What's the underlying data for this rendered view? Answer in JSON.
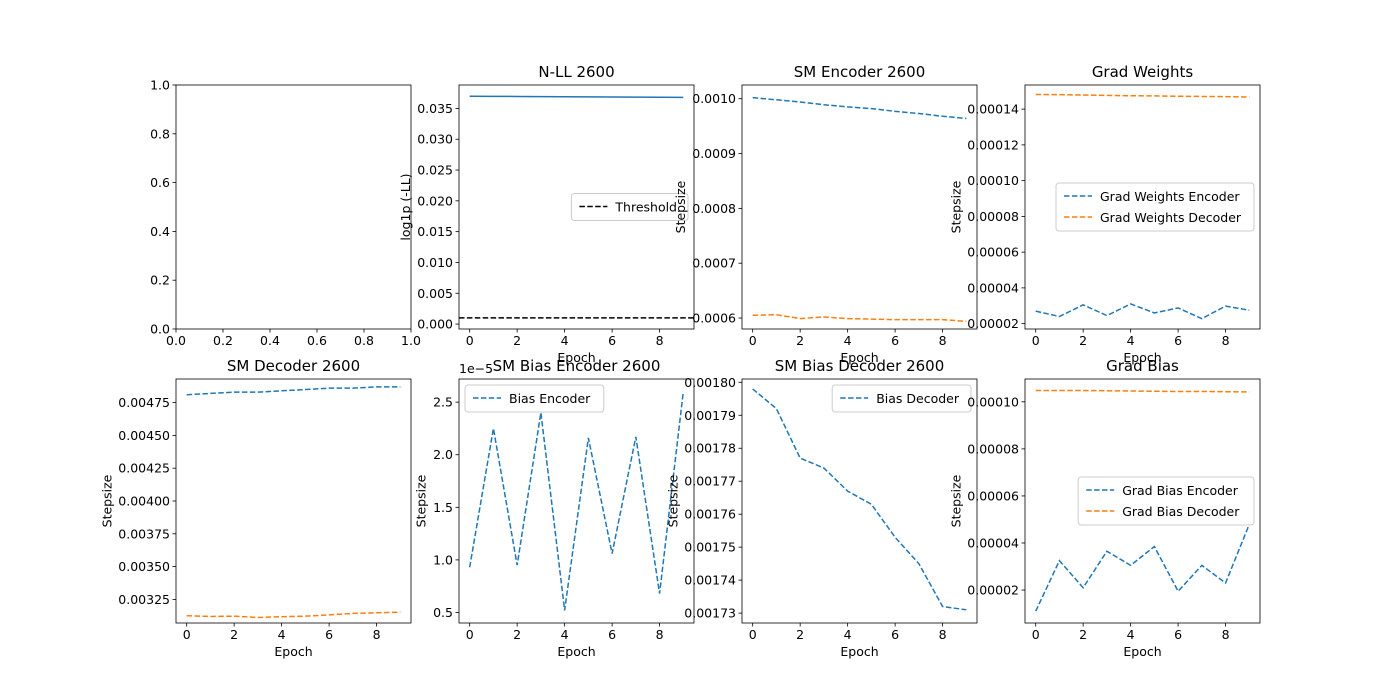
{
  "figure": {
    "layout": "2x4 grid of subplots"
  },
  "chart_data": [
    {
      "type": "line",
      "title": "",
      "xlabel": "",
      "ylabel": "",
      "xlim": [
        0,
        1
      ],
      "ylim": [
        0,
        1
      ],
      "xticks": [
        0.0,
        0.2,
        0.4,
        0.6,
        0.8,
        1.0
      ],
      "xtick_labels": [
        "0.0",
        "0.2",
        "0.4",
        "0.6",
        "0.8",
        "1.0"
      ],
      "yticks": [
        0.0,
        0.2,
        0.4,
        0.6,
        0.8,
        1.0
      ],
      "ytick_labels": [
        "0.0",
        "0.2",
        "0.4",
        "0.6",
        "0.8",
        "1.0"
      ],
      "series": [],
      "legend": null
    },
    {
      "type": "line",
      "title": "N-LL 2600",
      "xlabel": "Epoch",
      "ylabel": "log1p (-LL)",
      "xlim": [
        -0.45,
        9.45
      ],
      "ylim": [
        -0.0008,
        0.0388
      ],
      "xticks": [
        0,
        2,
        4,
        6,
        8
      ],
      "xtick_labels": [
        "0",
        "2",
        "4",
        "6",
        "8"
      ],
      "yticks": [
        0.0,
        0.005,
        0.01,
        0.015,
        0.02,
        0.025,
        0.03,
        0.035
      ],
      "ytick_labels": [
        "0.000",
        "0.005",
        "0.010",
        "0.015",
        "0.020",
        "0.025",
        "0.030",
        "0.035"
      ],
      "series": [
        {
          "color": "#1f77b4",
          "dash": "solid",
          "x": [
            0,
            1,
            2,
            3,
            4,
            5,
            6,
            7,
            8,
            9
          ],
          "y": [
            0.03698,
            0.03696,
            0.03694,
            0.03692,
            0.0369,
            0.03688,
            0.03686,
            0.03684,
            0.03682,
            0.0368
          ]
        },
        {
          "name": "Threshold",
          "color": "#000000",
          "dash": "dashed",
          "x": [
            -0.45,
            9.45
          ],
          "y": [
            0.001,
            0.001
          ]
        }
      ],
      "legend": {
        "position": "center-right",
        "entries": [
          "Threshold"
        ]
      }
    },
    {
      "type": "line",
      "title": "SM Encoder 2600",
      "xlabel": "Epoch",
      "ylabel": "Stepsize",
      "xlim": [
        -0.45,
        9.45
      ],
      "ylim": [
        0.00058,
        0.001025
      ],
      "xticks": [
        0,
        2,
        4,
        6,
        8
      ],
      "xtick_labels": [
        "0",
        "2",
        "4",
        "6",
        "8"
      ],
      "yticks": [
        0.0006,
        0.0007,
        0.0008,
        0.0009,
        0.001
      ],
      "ytick_labels": [
        "0.0006",
        "0.0007",
        "0.0008",
        "0.0009",
        "0.0010"
      ],
      "series": [
        {
          "color": "#1f77b4",
          "dash": "dashed",
          "x": [
            0,
            1,
            2,
            3,
            4,
            5,
            6,
            7,
            8,
            9
          ],
          "y": [
            0.001002,
            0.000998,
            0.000994,
            0.000989,
            0.000985,
            0.000982,
            0.000977,
            0.000973,
            0.000968,
            0.000964
          ]
        },
        {
          "color": "#ff7f0e",
          "dash": "dashed",
          "x": [
            0,
            1,
            2,
            3,
            4,
            5,
            6,
            7,
            8,
            9
          ],
          "y": [
            0.000605,
            0.000606,
            0.000599,
            0.000602,
            0.000599,
            0.000598,
            0.000597,
            0.000597,
            0.000597,
            0.000594
          ]
        }
      ],
      "legend": null
    },
    {
      "type": "line",
      "title": "Grad Weights",
      "xlabel": "Epoch",
      "ylabel": "Stepsize",
      "xlim": [
        -0.45,
        9.45
      ],
      "ylim": [
        1.7e-05,
        0.0001535
      ],
      "xticks": [
        0,
        2,
        4,
        6,
        8
      ],
      "xtick_labels": [
        "0",
        "2",
        "4",
        "6",
        "8"
      ],
      "yticks": [
        2e-05,
        4e-05,
        6e-05,
        8e-05,
        0.0001,
        0.00012,
        0.00014
      ],
      "ytick_labels": [
        "0.00002",
        "0.00004",
        "0.00006",
        "0.00008",
        "0.00010",
        "0.00012",
        "0.00014"
      ],
      "series": [
        {
          "name": "Grad Weights Encoder",
          "color": "#1f77b4",
          "dash": "dashed",
          "x": [
            0,
            1,
            2,
            3,
            4,
            5,
            6,
            7,
            8,
            9
          ],
          "y": [
            2.7e-05,
            2.4e-05,
            3.05e-05,
            2.45e-05,
            3.1e-05,
            2.6e-05,
            2.88e-05,
            2.28e-05,
            2.98e-05,
            2.75e-05
          ]
        },
        {
          "name": "Grad Weights Decoder",
          "color": "#ff7f0e",
          "dash": "dashed",
          "x": [
            0,
            1,
            2,
            3,
            4,
            5,
            6,
            7,
            8,
            9
          ],
          "y": [
            0.0001482,
            0.0001481,
            0.0001479,
            0.0001477,
            0.0001475,
            0.0001474,
            0.0001472,
            0.0001471,
            0.000147,
            0.0001468
          ]
        }
      ],
      "legend": {
        "position": "center-right",
        "entries": [
          "Grad Weights Encoder",
          "Grad Weights Decoder"
        ]
      }
    },
    {
      "type": "line",
      "title": "SM Decoder 2600",
      "xlabel": "Epoch",
      "ylabel": "Stepsize",
      "xlim": [
        -0.45,
        9.45
      ],
      "ylim": [
        0.00307,
        0.00493
      ],
      "xticks": [
        0,
        2,
        4,
        6,
        8
      ],
      "xtick_labels": [
        "0",
        "2",
        "4",
        "6",
        "8"
      ],
      "yticks": [
        0.00325,
        0.0035,
        0.00375,
        0.004,
        0.00425,
        0.0045,
        0.00475
      ],
      "ytick_labels": [
        "0.00325",
        "0.00350",
        "0.00375",
        "0.00400",
        "0.00425",
        "0.00450",
        "0.00475"
      ],
      "series": [
        {
          "color": "#1f77b4",
          "dash": "dashed",
          "x": [
            0,
            1,
            2,
            3,
            4,
            5,
            6,
            7,
            8,
            9
          ],
          "y": [
            0.00481,
            0.00482,
            0.00483,
            0.00483,
            0.00484,
            0.00485,
            0.00486,
            0.00486,
            0.00487,
            0.00487
          ]
        },
        {
          "color": "#ff7f0e",
          "dash": "dashed",
          "x": [
            0,
            1,
            2,
            3,
            4,
            5,
            6,
            7,
            8,
            9
          ],
          "y": [
            0.003125,
            0.00312,
            0.003122,
            0.003112,
            0.003118,
            0.003122,
            0.003132,
            0.003143,
            0.003148,
            0.003153
          ]
        }
      ],
      "legend": null
    },
    {
      "type": "line",
      "title": "SM Bias Encoder 2600",
      "xlabel": "Epoch",
      "ylabel": "Stepsize",
      "offset_label": "1e−5",
      "xlim": [
        -0.45,
        9.45
      ],
      "ylim": [
        0.4,
        2.72
      ],
      "xticks": [
        0,
        2,
        4,
        6,
        8
      ],
      "xtick_labels": [
        "0",
        "2",
        "4",
        "6",
        "8"
      ],
      "yticks": [
        0.5,
        1.0,
        1.5,
        2.0,
        2.5
      ],
      "ytick_labels": [
        "0.5",
        "1.0",
        "1.5",
        "2.0",
        "2.5"
      ],
      "series": [
        {
          "name": "Bias Encoder",
          "color": "#1f77b4",
          "dash": "dashed",
          "x": [
            0,
            1,
            2,
            3,
            4,
            5,
            6,
            7,
            8,
            9
          ],
          "y": [
            0.93,
            2.25,
            0.95,
            2.4,
            0.52,
            2.16,
            1.06,
            2.17,
            0.68,
            2.6
          ]
        }
      ],
      "legend": {
        "position": "upper left",
        "entries": [
          "Bias Encoder"
        ]
      }
    },
    {
      "type": "line",
      "title": "SM Bias Decoder 2600",
      "xlabel": "Epoch",
      "ylabel": "Stepsize",
      "xlim": [
        -0.45,
        9.45
      ],
      "ylim": [
        0.001727,
        0.001801
      ],
      "xticks": [
        0,
        2,
        4,
        6,
        8
      ],
      "xtick_labels": [
        "0",
        "2",
        "4",
        "6",
        "8"
      ],
      "yticks": [
        0.00173,
        0.00174,
        0.00175,
        0.00176,
        0.00177,
        0.00178,
        0.00179,
        0.0018
      ],
      "ytick_labels": [
        "0.00173",
        "0.00174",
        "0.00175",
        "0.00176",
        "0.00177",
        "0.00178",
        "0.00179",
        "0.00180"
      ],
      "series": [
        {
          "name": "Bias Decoder",
          "color": "#1f77b4",
          "dash": "dashed",
          "x": [
            0,
            1,
            2,
            3,
            4,
            5,
            6,
            7,
            8,
            9
          ],
          "y": [
            0.001798,
            0.001792,
            0.001777,
            0.001774,
            0.001767,
            0.001763,
            0.001753,
            0.001745,
            0.001732,
            0.001731
          ]
        }
      ],
      "legend": {
        "position": "upper right",
        "entries": [
          "Bias Decoder"
        ]
      }
    },
    {
      "type": "line",
      "title": "Grad Bias",
      "xlabel": "Epoch",
      "ylabel": "Stepsize",
      "xlim": [
        -0.45,
        9.45
      ],
      "ylim": [
        6e-06,
        0.0001097
      ],
      "xticks": [
        0,
        2,
        4,
        6,
        8
      ],
      "xtick_labels": [
        "0",
        "2",
        "4",
        "6",
        "8"
      ],
      "yticks": [
        2e-05,
        4e-05,
        6e-05,
        8e-05,
        0.0001
      ],
      "ytick_labels": [
        "0.00002",
        "0.00004",
        "0.00006",
        "0.00008",
        "0.00010"
      ],
      "series": [
        {
          "name": "Grad Bias Encoder",
          "color": "#1f77b4",
          "dash": "dashed",
          "x": [
            0,
            1,
            2,
            3,
            4,
            5,
            6,
            7,
            8,
            9
          ],
          "y": [
            1.1e-05,
            3.25e-05,
            2.1e-05,
            3.65e-05,
            3.05e-05,
            3.85e-05,
            1.95e-05,
            3.05e-05,
            2.3e-05,
            4.8e-05
          ]
        },
        {
          "name": "Grad Bias Decoder",
          "color": "#ff7f0e",
          "dash": "dashed",
          "x": [
            0,
            1,
            2,
            3,
            4,
            5,
            6,
            7,
            8,
            9
          ],
          "y": [
            0.0001048,
            0.0001048,
            0.0001048,
            0.0001047,
            0.0001046,
            0.0001045,
            0.0001044,
            0.0001044,
            0.0001043,
            0.0001042
          ]
        }
      ],
      "legend": {
        "position": "center-right",
        "entries": [
          "Grad Bias Encoder",
          "Grad Bias Decoder"
        ]
      }
    }
  ]
}
